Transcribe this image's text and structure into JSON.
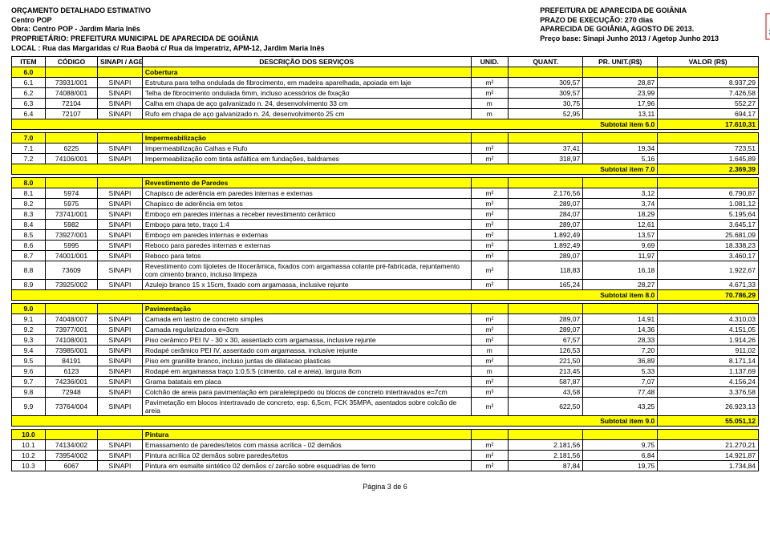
{
  "header": {
    "left": [
      "ORÇAMENTO DETALHADO ESTIMATIVO",
      "Centro POP",
      "Obra: Centro POP - Jardim Maria Inês",
      "PROPRIETÁRIO: PREFEITURA MUNICIPAL DE APARECIDA DE GOIÂNIA",
      "LOCAL : Rua das Margaridas c/ Rua Baobá c/ Rua da Imperatriz, APM-12, Jardim Maria Inês"
    ],
    "right": [
      "PREFEITURA DE APARECIDA DE GOIÂNIA",
      "PRAZO DE EXECUÇÃO: 270 dias",
      "APARECIDA DE GOIÂNIA, AGOSTO DE 2013.",
      "Preço base: Sinapi Junho 2013 / Agetop Junho 2013"
    ]
  },
  "columns": [
    "ITEM",
    "CÓDIGO",
    "SINAPI / AGETOP",
    "DESCRIÇÃO DOS SERVIÇOS",
    "UNID.",
    "QUANT.",
    "PR. UNIT.(R$)",
    "VALOR (R$)"
  ],
  "sections": [
    {
      "id": "6.0",
      "title": "Cobertura",
      "rows": [
        [
          "6.1",
          "73931/001",
          "SINAPI",
          "Estrutura para telha ondulada de fibrocimento, em madeira aparelhada, apoiada em laje",
          "m²",
          "309,57",
          "28,87",
          "8.937,29"
        ],
        [
          "6.2",
          "74088/001",
          "SINAPI",
          "Telha de fibrocimento ondulada 6mm, incluso acessórios de fixação",
          "m²",
          "309,57",
          "23,99",
          "7.426,58"
        ],
        [
          "6.3",
          "72104",
          "SINAPI",
          "Calha em chapa de aço galvanizado n. 24, desenvolvimento 33 cm",
          "m",
          "30,75",
          "17,96",
          "552,27"
        ],
        [
          "6.4",
          "72107",
          "SINAPI",
          "Rufo em chapa de aço galvanizado n. 24, desenvolvimento 25 cm",
          "m",
          "52,95",
          "13,11",
          "694,17"
        ]
      ],
      "subtotal_label": "Subtotal item 6.0",
      "subtotal": "17.610,31"
    },
    {
      "id": "7.0",
      "title": "Impermeabilização",
      "rows": [
        [
          "7.1",
          "6225",
          "SINAPI",
          "Impermeabilização Calhas e Rufo",
          "m²",
          "37,41",
          "19,34",
          "723,51"
        ],
        [
          "7.2",
          "74106/001",
          "SINAPI",
          "Impermeabilização com tinta asfáltica em fundações, baldrames",
          "m²",
          "318,97",
          "5,16",
          "1.645,89"
        ]
      ],
      "subtotal_label": "Subtotal item 7.0",
      "subtotal": "2.369,39"
    },
    {
      "id": "8.0",
      "title": "Revestimento de Paredes",
      "rows": [
        [
          "8.1",
          "5974",
          "SINAPI",
          "Chapisco de aderência em paredes internas e externas",
          "m²",
          "2.176,56",
          "3,12",
          "6.790,87"
        ],
        [
          "8.2",
          "5975",
          "SINAPI",
          "Chapisco de aderência em tetos",
          "m²",
          "289,07",
          "3,74",
          "1.081,12"
        ],
        [
          "8.3",
          "73741/001",
          "SINAPI",
          "Emboço em paredes internas a receber revestimento cerâmico",
          "m²",
          "284,07",
          "18,29",
          "5.195,64"
        ],
        [
          "8.4",
          "5982",
          "SINAPI",
          "Emboço para teto, traço 1:4",
          "m²",
          "289,07",
          "12,61",
          "3.645,17"
        ],
        [
          "8.5",
          "73927/001",
          "SINAPI",
          "Emboço em paredes internas e externas",
          "m²",
          "1.892,49",
          "13,57",
          "25.681,09"
        ],
        [
          "8.6",
          "5995",
          "SINAPI",
          "Reboco para paredes internas e externas",
          "m²",
          "1.892,49",
          "9,69",
          "18.338,23"
        ],
        [
          "8.7",
          "74001/001",
          "SINAPI",
          "Reboco para tetos",
          "m²",
          "289,07",
          "11,97",
          "3.460,17"
        ],
        [
          "8.8",
          "73609",
          "SINAPI",
          "Revestimento com tijoletes de litocerâmica, fixados com argamassa colante pré-fabricada, rejuntamento com cimento branco, incluso limpeza",
          "m²",
          "118,83",
          "16,18",
          "1.922,67"
        ],
        [
          "8.9",
          "73925/002",
          "SINAPI",
          "Azulejo branco 15 x 15cm, fixado com argamassa, inclusive rejunte",
          "m²",
          "165,24",
          "28,27",
          "4.671,33"
        ]
      ],
      "subtotal_label": "Subtotal item 8.0",
      "subtotal": "70.786,29"
    },
    {
      "id": "9.0",
      "title": "Pavimentação",
      "rows": [
        [
          "9.1",
          "74048/007",
          "SINAPI",
          "Camada em lastro de concreto simples",
          "m²",
          "289,07",
          "14,91",
          "4.310,03"
        ],
        [
          "9.2",
          "73977/001",
          "SINAPI",
          "Camada regularizadora e=3cm",
          "m²",
          "289,07",
          "14,36",
          "4.151,05"
        ],
        [
          "9.3",
          "74108/001",
          "SINAPI",
          "Piso cerâmico PEI IV - 30 x 30, assentado com argamassa, inclusive rejunte",
          "m²",
          "67,57",
          "28,33",
          "1.914,26"
        ],
        [
          "9.4",
          "73985/001",
          "SINAPI",
          "Rodapé cerâmico PEI IV, assentado com argamassa, inclusive rejunte",
          "m",
          "126,53",
          "7,20",
          "911,02"
        ],
        [
          "9.5",
          "84191",
          "SINAPI",
          "Piso em granilite branco, incluso juntas de dilatacao plasticas",
          "m²",
          "221,50",
          "36,89",
          "8.171,14"
        ],
        [
          "9.6",
          "6123",
          "SINAPI",
          "Rodapé em argamassa traço 1:0,5:5 (cimento, cal e areia), largura 8cm",
          "m",
          "213,45",
          "5,33",
          "1.137,69"
        ],
        [
          "9.7",
          "74236/001",
          "SINAPI",
          "Grama batatais em placa",
          "m²",
          "587,87",
          "7,07",
          "4.156,24"
        ],
        [
          "9.8",
          "72948",
          "SINAPI",
          "Colchão de areia para pavimentação em paralelepípedo ou blocos de concreto intertravados e=7cm",
          "m³",
          "43,58",
          "77,48",
          "3.376,58"
        ],
        [
          "9.9",
          "73764/004",
          "SINAPI",
          "Pavimetação em blocos intertravado de concreto, esp. 6,5cm, FCK 35MPA, asentados sobre colcão de areia",
          "m²",
          "622,50",
          "43,25",
          "26.923,13"
        ]
      ],
      "subtotal_label": "Subtotal item 9.0",
      "subtotal": "55.051,12"
    },
    {
      "id": "10.0",
      "title": "Pintura",
      "rows": [
        [
          "10.1",
          "74134/002",
          "SINAPI",
          "Emassamento de paredes/tetos com massa acrílica - 02 demãos",
          "m²",
          "2.181,56",
          "9,75",
          "21.270,21"
        ],
        [
          "10.2",
          "73954/002",
          "SINAPI",
          "Pintura acrílica 02 demãos sobre paredes/tetos",
          "m²",
          "2.181,56",
          "6,84",
          "14.921,87"
        ],
        [
          "10.3",
          "6067",
          "SINAPI",
          "Pintura em esmalte sintético 02 demãos c/ zarcão sobre esquadrias de ferro",
          "m²",
          "87,84",
          "19,75",
          "1.734,84"
        ]
      ],
      "subtotal_label": "",
      "subtotal": ""
    }
  ],
  "footer": "Página 3 de 6"
}
